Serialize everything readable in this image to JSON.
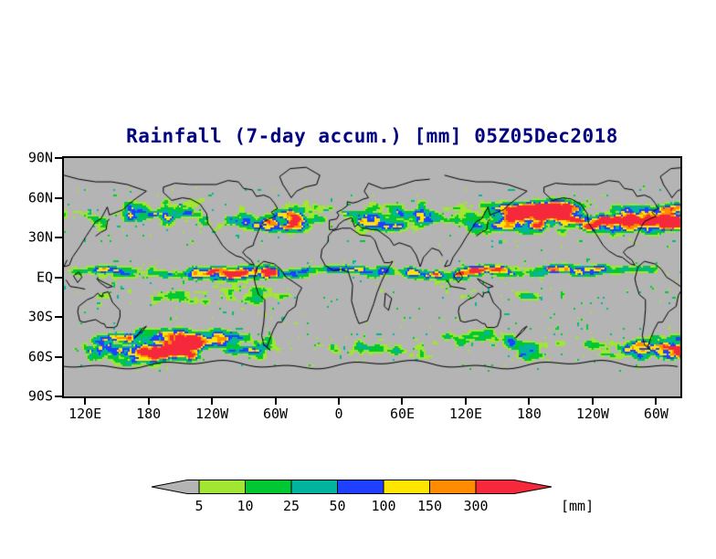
{
  "title": "Rainfall (7-day accum.) [mm] 05Z05Dec2018",
  "title_color": "#000080",
  "map": {
    "lat_labels": [
      "90N",
      "60N",
      "30N",
      "EQ",
      "30S",
      "60S",
      "90S"
    ],
    "lon_labels": [
      "120E",
      "180",
      "120W",
      "60W",
      "0",
      "60E",
      "120E",
      "180",
      "120W",
      "60W"
    ],
    "background_color": "#b4b4b4",
    "coastline_color": "#000000",
    "frame_color": "#000000"
  },
  "colorbar": {
    "boundary_labels": [
      "5",
      "10",
      "25",
      "50",
      "100",
      "150",
      "300"
    ],
    "unit": "[mm]",
    "colors": [
      "#b4b4b4",
      "#a0e632",
      "#00c832",
      "#00b4a0",
      "#2040ff",
      "#ffe600",
      "#ff8c00",
      "#f5283c"
    ]
  }
}
